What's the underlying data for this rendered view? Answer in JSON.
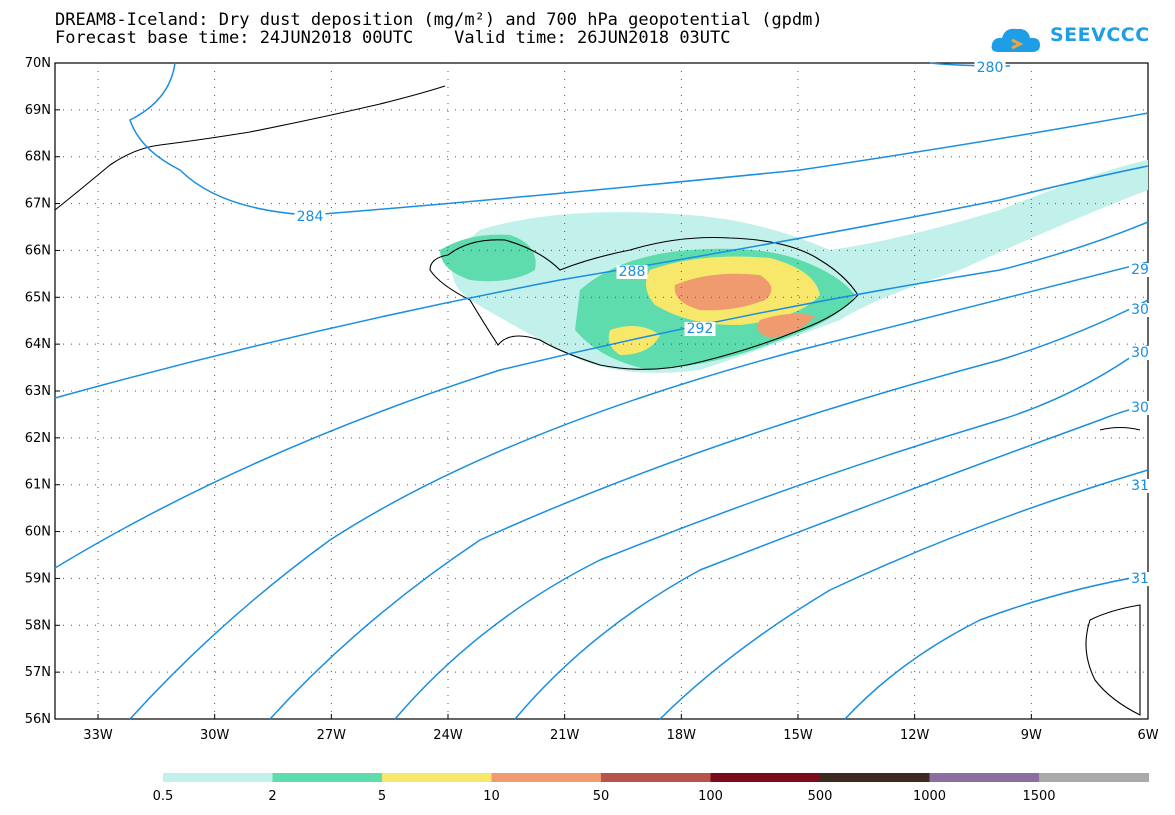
{
  "header": {
    "title_line1": "DREAM8-Iceland: Dry dust deposition (mg/m²) and 700 hPa geopotential (gpdm)",
    "title_line2": "Forecast base time: 24JUN2018 00UTC    Valid time: 26JUN2018 03UTC",
    "logo_text": "SEEVCCC"
  },
  "axes": {
    "lat_labels": [
      "70N",
      "69N",
      "68N",
      "67N",
      "66N",
      "65N",
      "64N",
      "63N",
      "62N",
      "61N",
      "60N",
      "59N",
      "58N",
      "57N",
      "56N"
    ],
    "lon_labels": [
      "33W",
      "30W",
      "27W",
      "24W",
      "21W",
      "18W",
      "15W",
      "12W",
      "9W",
      "6W"
    ]
  },
  "contours": [
    {
      "label": "280"
    },
    {
      "label": "284"
    },
    {
      "label": "288"
    },
    {
      "label": "292"
    },
    {
      "label": "29"
    },
    {
      "label": "30"
    },
    {
      "label": "30"
    },
    {
      "label": "30"
    },
    {
      "label": "31"
    },
    {
      "label": "31"
    }
  ],
  "legend": {
    "labels": [
      "0.5",
      "2",
      "5",
      "10",
      "50",
      "100",
      "500",
      "1000",
      "1500"
    ],
    "colors": [
      "#c2f0ea",
      "#5fdcae",
      "#f7e86b",
      "#f09a6f",
      "#b5544c",
      "#7a0a1e",
      "#3b2a1f",
      "#8c6ea3",
      "#a9a9a9"
    ]
  },
  "colors": {
    "contour": "#1a8fe0",
    "coast": "#000000"
  }
}
